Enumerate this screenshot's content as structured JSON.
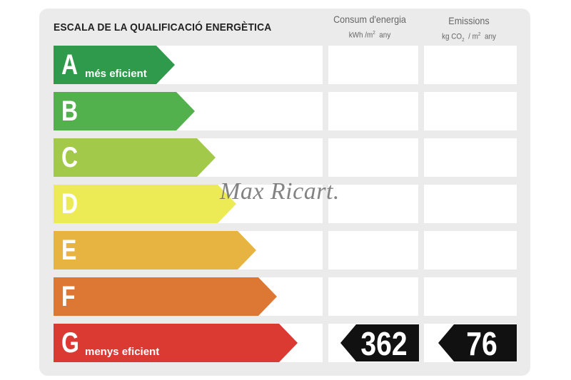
{
  "title": "ESCALA DE LA QUALIFICACIÓ ENERGÈTICA",
  "columns": {
    "consumption": {
      "label": "Consum d'energia",
      "unit_prefix": "kWh /m",
      "unit_exp": "2",
      "unit_suffix": "any"
    },
    "emissions": {
      "label": "Emissions",
      "unit_prefix": "kg CO",
      "unit_sub": "2",
      "unit_mid": "/ m",
      "unit_exp": "2",
      "unit_suffix": "any"
    }
  },
  "ratings": [
    {
      "letter": "A",
      "note": "més eficient",
      "color": "#2f9a4b"
    },
    {
      "letter": "B",
      "note": "",
      "color": "#52b14d"
    },
    {
      "letter": "C",
      "note": "",
      "color": "#a2c94a"
    },
    {
      "letter": "D",
      "note": "",
      "color": "#ecea55"
    },
    {
      "letter": "E",
      "note": "",
      "color": "#e7b442"
    },
    {
      "letter": "F",
      "note": "",
      "color": "#dc7734"
    },
    {
      "letter": "G",
      "note": "menys eficient",
      "color": "#db3a33"
    }
  ],
  "result": {
    "rating": "G",
    "consumption_value": "362",
    "emissions_value": "76"
  },
  "watermark": "Max Ricart."
}
